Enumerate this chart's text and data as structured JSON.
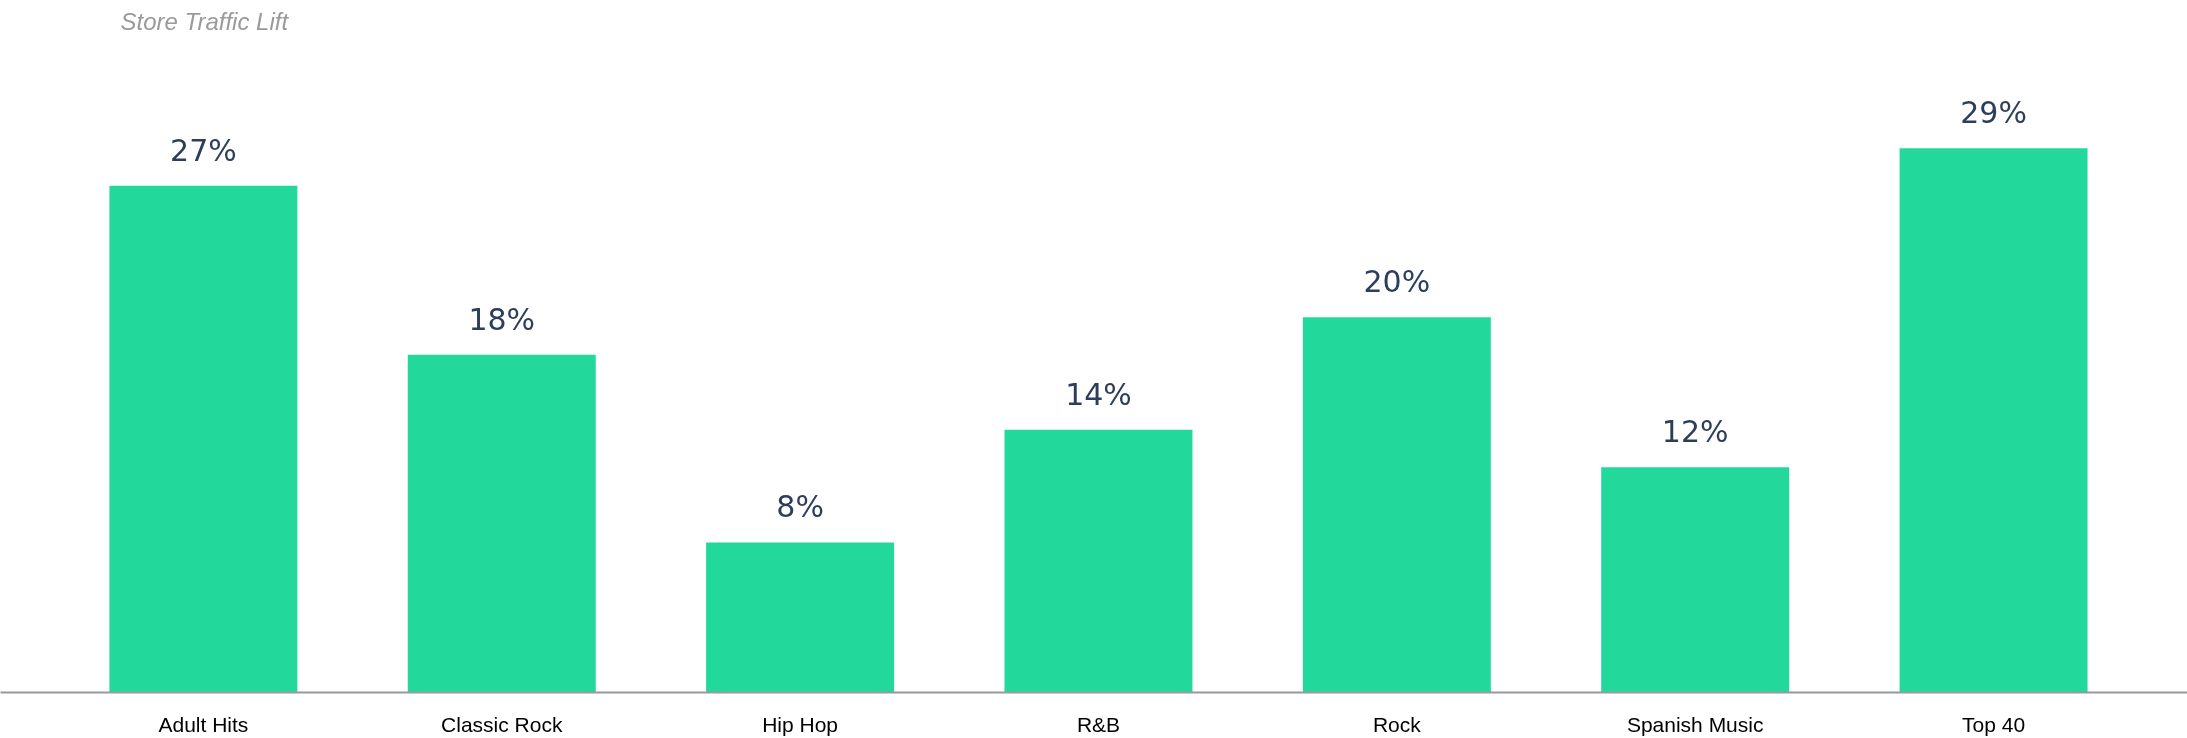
{
  "chart_data": {
    "type": "bar",
    "title": "Store Traffic Lift",
    "categories": [
      "Adult Hits",
      "Classic Rock",
      "Hip Hop",
      "R&B",
      "Rock",
      "Spanish Music",
      "Top 40"
    ],
    "values": [
      27,
      18,
      8,
      14,
      20,
      12,
      29
    ],
    "value_labels": [
      "27%",
      "18%",
      "8%",
      "14%",
      "20%",
      "12%",
      "29%"
    ],
    "color": "#22d89b"
  }
}
